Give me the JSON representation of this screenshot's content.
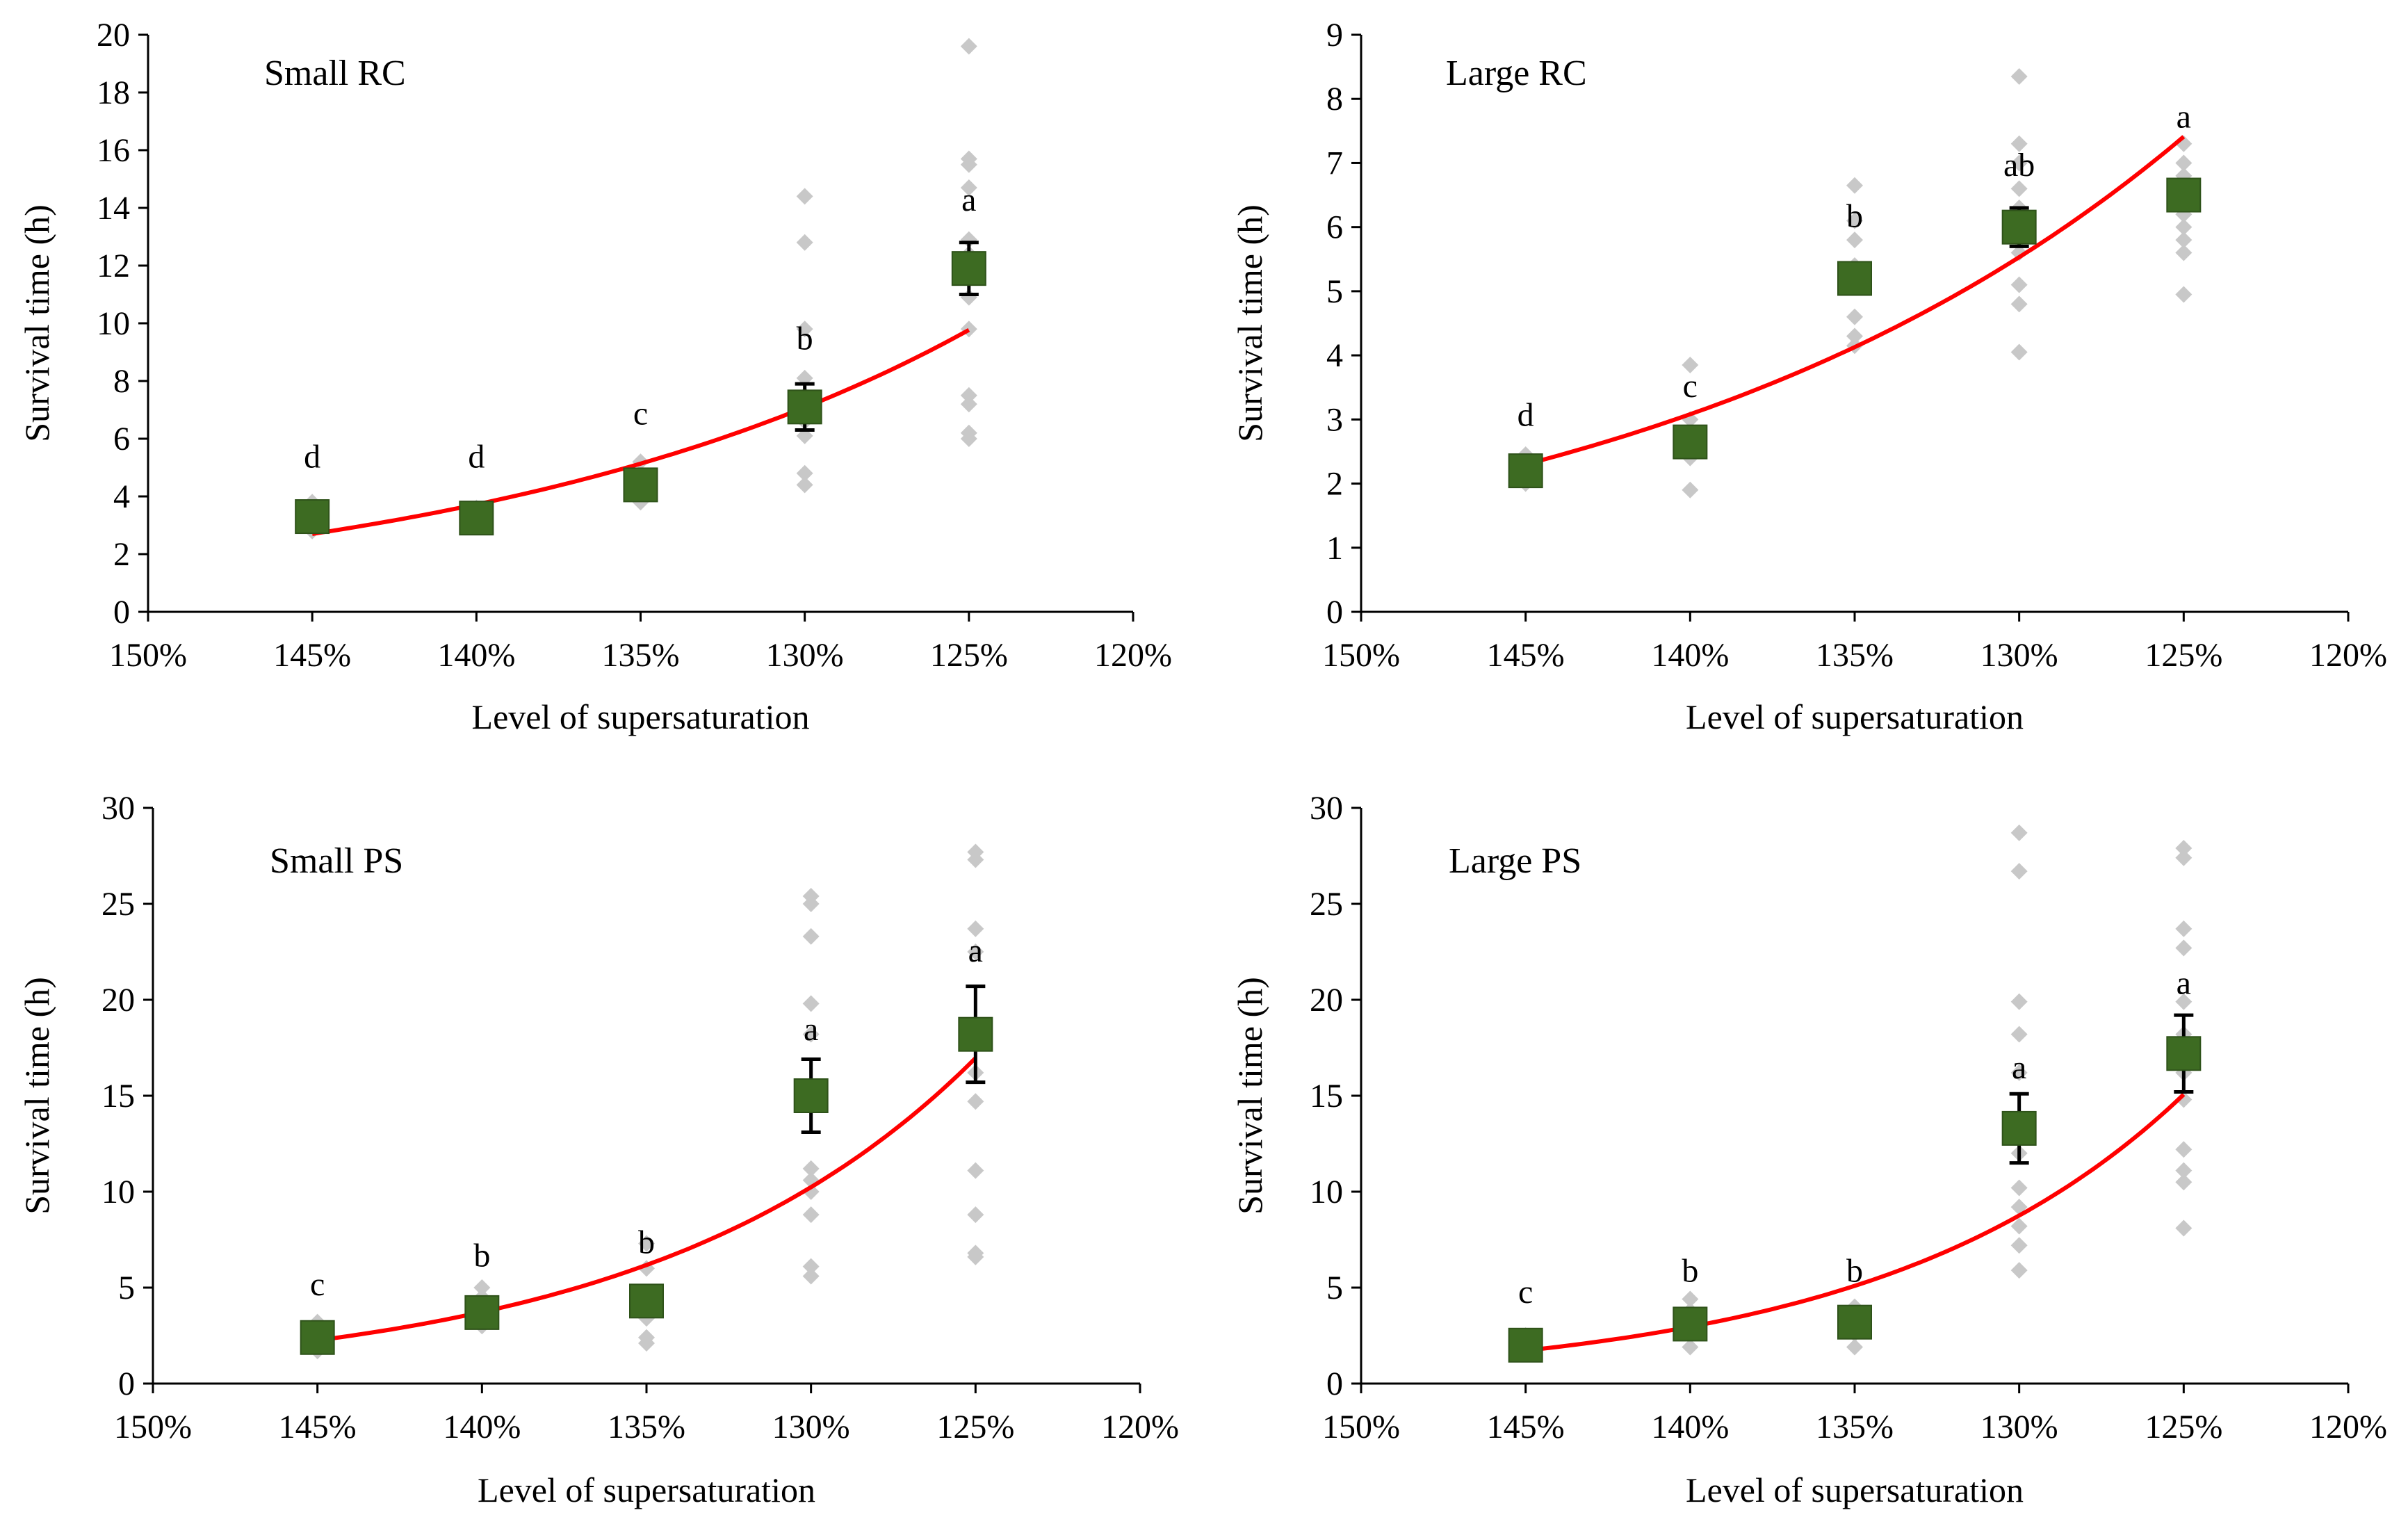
{
  "colors": {
    "raw_points": "#c8c8c8",
    "mean_marker": "#3d6b22",
    "mean_marker_edge": "#2e5219",
    "fit_line": "#ff0000",
    "error_bar": "#000000",
    "axis": "#000000"
  },
  "chart_data": [
    {
      "type": "scatter",
      "title": "Small RC",
      "xlabel": "Level of supersaturation",
      "ylabel": "Survival time (h)",
      "x_ticks": [
        150,
        145,
        140,
        135,
        130,
        125,
        120
      ],
      "x_tick_labels": [
        "150%",
        "145%",
        "140%",
        "135%",
        "130%",
        "125%",
        "120%"
      ],
      "xlim": [
        150,
        120
      ],
      "y_ticks": [
        0,
        2,
        4,
        6,
        8,
        10,
        12,
        14,
        16,
        18,
        20
      ],
      "y_tick_labels": [
        "0",
        "2",
        "4",
        "6",
        "8",
        "10",
        "12",
        "14",
        "16",
        "18",
        "20"
      ],
      "ylim": [
        0,
        20
      ],
      "categories": [
        "145%",
        "140%",
        "135%",
        "130%",
        "125%"
      ],
      "x": [
        145,
        140,
        135,
        130,
        125
      ],
      "means": [
        3.3,
        3.25,
        4.4,
        7.1,
        11.9
      ],
      "errors": [
        0.15,
        0.12,
        0.2,
        0.8,
        0.9
      ],
      "letters": [
        "d",
        "d",
        "c",
        "b",
        "a"
      ],
      "letter_y": [
        5.0,
        5.0,
        6.5,
        9.1,
        13.9
      ],
      "raw_points": [
        [
          3.8,
          3.5,
          3.1,
          2.8,
          3.4,
          3.2
        ],
        [
          3.6,
          3.3,
          3.0,
          3.5,
          3.1
        ],
        [
          5.2,
          4.8,
          4.5,
          4.1,
          3.8,
          4.3
        ],
        [
          14.4,
          12.8,
          9.8,
          8.1,
          7.5,
          6.6,
          6.1,
          4.8,
          4.4,
          7.0
        ],
        [
          19.6,
          15.7,
          15.5,
          14.7,
          12.9,
          12.4,
          11.8,
          10.9,
          9.8,
          7.5,
          7.2,
          6.2,
          6.0
        ]
      ],
      "fit": {
        "type": "exponential",
        "a": 2.7,
        "b": 0.0643,
        "x_range": [
          145,
          125
        ]
      }
    },
    {
      "type": "scatter",
      "title": "Large RC",
      "xlabel": "Level of supersaturation",
      "ylabel": "Survival time (h)",
      "x_ticks": [
        150,
        145,
        140,
        135,
        130,
        125,
        120
      ],
      "x_tick_labels": [
        "150%",
        "145%",
        "140%",
        "135%",
        "130%",
        "125%",
        "120%"
      ],
      "xlim": [
        150,
        120
      ],
      "y_ticks": [
        0,
        1,
        2,
        3,
        4,
        5,
        6,
        7,
        8,
        9
      ],
      "y_tick_labels": [
        "0",
        "1",
        "2",
        "3",
        "4",
        "5",
        "6",
        "7",
        "8",
        "9"
      ],
      "ylim": [
        0,
        9
      ],
      "categories": [
        "145%",
        "140%",
        "135%",
        "130%",
        "125%"
      ],
      "x": [
        145,
        140,
        135,
        130,
        125
      ],
      "means": [
        2.2,
        2.65,
        5.2,
        6.0,
        6.5
      ],
      "errors": [
        0.08,
        0.1,
        0.15,
        0.3,
        0.2
      ],
      "letters": [
        "d",
        "c",
        "b",
        "ab",
        "a"
      ],
      "letter_y": [
        2.9,
        3.35,
        6.0,
        6.8,
        7.55
      ],
      "raw_points": [
        [
          2.45,
          2.3,
          2.2,
          2.0
        ],
        [
          3.85,
          3.0,
          2.7,
          2.4,
          1.9,
          2.6
        ],
        [
          6.65,
          6.1,
          5.8,
          5.4,
          4.6,
          4.3,
          4.15
        ],
        [
          8.35,
          7.3,
          7.0,
          6.6,
          6.3,
          6.2,
          5.8,
          5.6,
          5.1,
          4.8,
          4.05
        ],
        [
          7.3,
          7.0,
          6.8,
          6.6,
          6.2,
          6.0,
          5.8,
          5.6,
          4.95
        ]
      ],
      "fit": {
        "type": "exponential",
        "a": 2.3,
        "b": 0.0585,
        "x_range": [
          145,
          125
        ]
      }
    },
    {
      "type": "scatter",
      "title": "Small PS",
      "xlabel": "Level of supersaturation",
      "ylabel": "Survival time (h)",
      "x_ticks": [
        150,
        145,
        140,
        135,
        130,
        125,
        120
      ],
      "x_tick_labels": [
        "150%",
        "145%",
        "140%",
        "135%",
        "130%",
        "125%",
        "120%"
      ],
      "xlim": [
        150,
        120
      ],
      "y_ticks": [
        0,
        5,
        10,
        15,
        20,
        25,
        30
      ],
      "y_tick_labels": [
        "0",
        "5",
        "10",
        "15",
        "20",
        "25",
        "30"
      ],
      "ylim": [
        0,
        30
      ],
      "categories": [
        "145%",
        "140%",
        "135%",
        "130%",
        "125%"
      ],
      "x": [
        145,
        140,
        135,
        130,
        125
      ],
      "means": [
        2.4,
        3.7,
        4.3,
        15.0,
        18.2
      ],
      "errors": [
        0.25,
        0.3,
        0.5,
        1.9,
        2.5
      ],
      "letters": [
        "c",
        "b",
        "b",
        "a",
        "a"
      ],
      "letter_y": [
        4.6,
        6.1,
        6.8,
        17.9,
        22.0
      ],
      "raw_points": [
        [
          3.2,
          2.8,
          2.4,
          2.0,
          1.7
        ],
        [
          5.0,
          4.5,
          4.0,
          3.5,
          3.0
        ],
        [
          7.3,
          6.0,
          4.0,
          3.4,
          2.4,
          2.1
        ],
        [
          25.4,
          25.0,
          23.3,
          19.8,
          18.2,
          11.2,
          10.6,
          10.0,
          8.8,
          6.1,
          5.6
        ],
        [
          27.7,
          27.3,
          23.7,
          22.5,
          18.0,
          16.2,
          14.7,
          11.1,
          8.8,
          6.8,
          6.6
        ]
      ],
      "fit": {
        "type": "exponential",
        "a": 2.25,
        "b": 0.101,
        "x_range": [
          145,
          125
        ]
      }
    },
    {
      "type": "scatter",
      "title": "Large PS",
      "xlabel": "Level of supersaturation",
      "ylabel": "Survival time (h)",
      "x_ticks": [
        150,
        145,
        140,
        135,
        130,
        125,
        120
      ],
      "x_tick_labels": [
        "150%",
        "145%",
        "140%",
        "135%",
        "130%",
        "125%",
        "120%"
      ],
      "xlim": [
        150,
        120
      ],
      "y_ticks": [
        0,
        5,
        10,
        15,
        20,
        25,
        30
      ],
      "y_tick_labels": [
        "0",
        "5",
        "10",
        "15",
        "20",
        "25",
        "30"
      ],
      "ylim": [
        0,
        30
      ],
      "categories": [
        "145%",
        "140%",
        "135%",
        "130%",
        "125%"
      ],
      "x": [
        145,
        140,
        135,
        130,
        125
      ],
      "means": [
        2.0,
        3.1,
        3.2,
        13.3,
        17.2
      ],
      "errors": [
        0.2,
        0.3,
        0.4,
        1.8,
        2.0
      ],
      "letters": [
        "c",
        "b",
        "b",
        "a",
        "a"
      ],
      "letter_y": [
        4.2,
        5.3,
        5.3,
        15.9,
        20.3
      ],
      "raw_points": [
        [
          2.5,
          2.2,
          2.0,
          1.8,
          1.6
        ],
        [
          4.4,
          3.8,
          3.0,
          2.5,
          1.9
        ],
        [
          4.0,
          3.6,
          3.0,
          2.6,
          1.9
        ],
        [
          28.7,
          26.7,
          19.9,
          18.2,
          16.2,
          12.0,
          10.2,
          9.2,
          8.2,
          7.2,
          5.9
        ],
        [
          27.9,
          27.4,
          23.7,
          22.7,
          19.9,
          18.2,
          16.2,
          14.8,
          12.2,
          11.1,
          10.5,
          8.1
        ]
      ],
      "fit": {
        "type": "exponential",
        "a": 1.72,
        "b": 0.1085,
        "x_range": [
          145,
          125
        ]
      }
    }
  ]
}
